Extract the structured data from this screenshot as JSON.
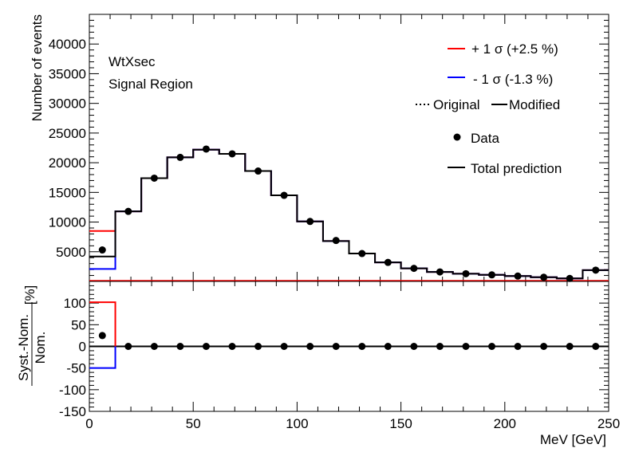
{
  "chart_data": [
    {
      "type": "step",
      "panel": "main",
      "ylabel": "Number of events",
      "ylim": [
        0,
        45000
      ],
      "yticks": [
        5000,
        10000,
        15000,
        20000,
        25000,
        30000,
        35000,
        40000
      ],
      "xlim": [
        0,
        250
      ],
      "annotations": [
        "WtXsec",
        "Signal Region"
      ],
      "legend": {
        "placement": "top-right",
        "entries": [
          {
            "label": "+ 1 σ (+2.5 %)",
            "color": "#ff0000"
          },
          {
            "label": "- 1 σ (-1.3 %)",
            "color": "#0000ff"
          },
          {
            "label": "Original",
            "style": "dotted",
            "color": "#000000"
          },
          {
            "label": "Modified",
            "style": "solid",
            "color": "#000000"
          },
          {
            "label": "Data",
            "style": "marker",
            "color": "#000000"
          },
          {
            "label": "Total prediction",
            "style": "solid",
            "color": "#000000"
          }
        ]
      },
      "bin_edges": [
        0,
        12.5,
        25,
        37.5,
        50,
        62.5,
        75,
        87.5,
        100,
        112.5,
        125,
        137.5,
        150,
        162.5,
        175,
        187.5,
        200,
        212.5,
        225,
        237.5,
        250
      ],
      "series": [
        {
          "name": "Total prediction",
          "color": "#000000",
          "values": [
            4200,
            11800,
            17400,
            20900,
            22200,
            21500,
            18600,
            14500,
            10100,
            6800,
            4700,
            3200,
            2200,
            1600,
            1300,
            1100,
            900,
            700,
            500,
            1900
          ]
        },
        {
          "name": "+ 1 σ (+2.5 %)",
          "color": "#ff0000",
          "values": [
            8500,
            11800,
            17400,
            20900,
            22200,
            21500,
            18600,
            14500,
            10100,
            6800,
            4700,
            3200,
            2200,
            1600,
            1300,
            1100,
            900,
            700,
            500,
            1900
          ]
        },
        {
          "name": "- 1 σ (-1.3 %)",
          "color": "#0000ff",
          "values": [
            2100,
            11800,
            17400,
            20900,
            22200,
            21500,
            18600,
            14500,
            10100,
            6800,
            4700,
            3200,
            2200,
            1600,
            1300,
            1100,
            900,
            700,
            500,
            1900
          ]
        }
      ],
      "data_points": {
        "name": "Data",
        "x": [
          6.25,
          18.75,
          31.25,
          43.75,
          56.25,
          68.75,
          81.25,
          93.75,
          106.25,
          118.75,
          131.25,
          143.75,
          156.25,
          168.75,
          181.25,
          193.75,
          206.25,
          218.75,
          231.25,
          243.75
        ],
        "y": [
          5300,
          11800,
          17400,
          20900,
          22300,
          21500,
          18600,
          14500,
          10100,
          6900,
          4700,
          3200,
          2200,
          1600,
          1300,
          1100,
          900,
          700,
          500,
          1900
        ]
      }
    },
    {
      "type": "step",
      "panel": "ratio",
      "xlabel": "MeV [GeV]",
      "ylabel_top": "Syst.-Nom.",
      "ylabel_bottom": "Nom.",
      "ylabel_unit": "[%]",
      "ylim": [
        -150,
        150
      ],
      "yticks": [
        -150,
        -100,
        -50,
        0,
        50,
        100
      ],
      "xticks": [
        0,
        50,
        100,
        150,
        200,
        250
      ],
      "xlim": [
        0,
        250
      ],
      "series": [
        {
          "name": "+ 1 σ",
          "color": "#ff0000",
          "values": [
            102,
            0,
            0,
            0,
            0,
            0,
            0,
            0,
            0,
            0,
            0,
            0,
            0,
            0,
            0,
            0,
            0,
            0,
            0,
            0
          ]
        },
        {
          "name": "- 1 σ",
          "color": "#0000ff",
          "values": [
            -50,
            0,
            0,
            0,
            0,
            0,
            0,
            0,
            0,
            0,
            0,
            0,
            0,
            0,
            0,
            0,
            0,
            0,
            0,
            0
          ]
        }
      ],
      "data_points": {
        "x": [
          6.25,
          18.75,
          31.25,
          43.75,
          56.25,
          68.75,
          81.25,
          93.75,
          106.25,
          118.75,
          131.25,
          143.75,
          156.25,
          168.75,
          181.25,
          193.75,
          206.25,
          218.75,
          231.25,
          243.75
        ],
        "y": [
          25,
          0,
          0,
          0,
          0,
          0,
          0,
          0,
          0,
          0,
          0,
          0,
          0,
          0,
          0,
          0,
          0,
          0,
          0,
          0
        ]
      }
    }
  ]
}
